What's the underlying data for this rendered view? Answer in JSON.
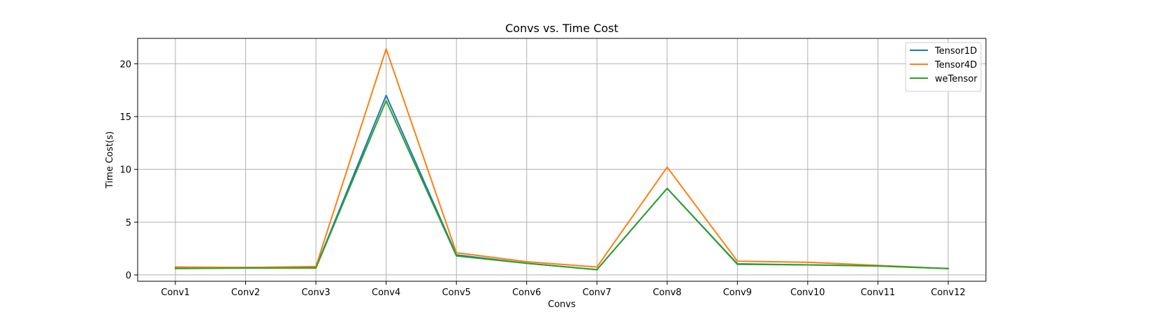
{
  "chart_data": {
    "type": "line",
    "title": "Convs vs. Time Cost",
    "xlabel": "Convs",
    "ylabel": "Time Cost(s)",
    "categories": [
      "Conv1",
      "Conv2",
      "Conv3",
      "Conv4",
      "Conv5",
      "Conv6",
      "Conv7",
      "Conv8",
      "Conv9",
      "Conv10",
      "Conv11",
      "Conv12"
    ],
    "ylim": [
      -0.6,
      22.4
    ],
    "yticks": [
      0,
      5,
      10,
      15,
      20
    ],
    "grid": true,
    "legend_position": "top-right",
    "series": [
      {
        "name": "Tensor1D",
        "color": "#1f77b4",
        "values": [
          0.65,
          0.7,
          0.7,
          17.0,
          1.9,
          1.1,
          0.5,
          8.2,
          1.05,
          0.95,
          0.85,
          0.6
        ]
      },
      {
        "name": "Tensor4D",
        "color": "#ff7f0e",
        "values": [
          0.75,
          0.7,
          0.8,
          21.4,
          2.1,
          1.25,
          0.75,
          10.2,
          1.3,
          1.2,
          0.9,
          0.6
        ]
      },
      {
        "name": "weTensor",
        "color": "#2ca02c",
        "values": [
          0.6,
          0.65,
          0.65,
          16.5,
          1.8,
          1.1,
          0.5,
          8.2,
          1.0,
          0.95,
          0.85,
          0.6
        ]
      }
    ]
  }
}
